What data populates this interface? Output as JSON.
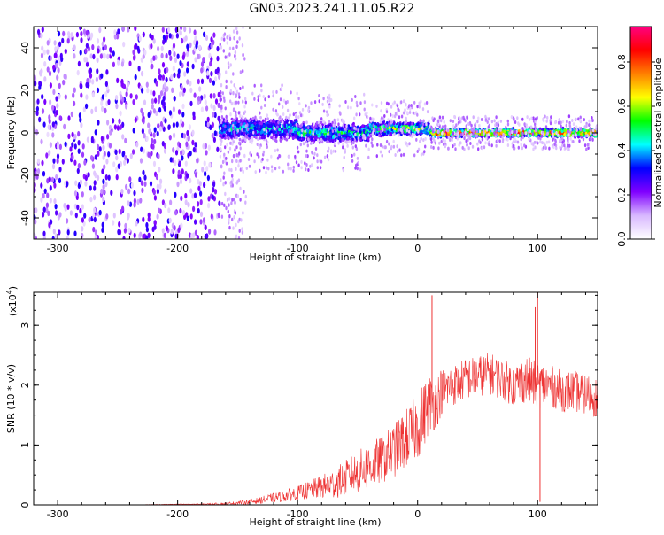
{
  "title": "GN03.2023.241.11.05.R22",
  "colorbar": {
    "label": "Normalized spectral amplitude",
    "ticks": [
      "0.0",
      "0.2",
      "0.4",
      "0.6",
      "0.8"
    ],
    "tick_values": [
      0.0,
      0.2,
      0.4,
      0.6,
      0.8
    ],
    "range": [
      0,
      0.96
    ],
    "colors": [
      "#ffffff",
      "#d8b8ff",
      "#8000ff",
      "#0000ff",
      "#00ffff",
      "#00ff00",
      "#ffff00",
      "#ff8000",
      "#ff0000",
      "#ff0080"
    ]
  },
  "chart_data": [
    {
      "type": "heatmap",
      "xlabel": "Height of straight line (km)",
      "ylabel": "Frequency (Hz)",
      "xlim": [
        -320,
        150
      ],
      "ylim": [
        -50,
        50
      ],
      "xticks": [
        -300,
        -200,
        -100,
        0,
        100
      ],
      "xtick_labels": [
        "-300",
        "-200",
        "-100",
        "0",
        "100"
      ],
      "yticks": [
        -40,
        -20,
        0,
        20,
        40
      ],
      "ytick_labels": [
        "-40",
        "-20",
        "0",
        "20",
        "40"
      ],
      "regions": [
        {
          "x": [
            -320,
            -165
          ],
          "freq_range": [
            -50,
            50
          ],
          "amplitude": 0.25,
          "description_type": "broadband noise"
        },
        {
          "x": [
            -165,
            -100
          ],
          "freq_center": 2,
          "freq_halfwidth": 8,
          "amplitude": 0.45
        },
        {
          "x": [
            -100,
            -40
          ],
          "freq_center": 0,
          "freq_halfwidth": 7,
          "amplitude": 0.5
        },
        {
          "x": [
            -40,
            10
          ],
          "freq_center": 2,
          "freq_halfwidth": 5,
          "amplitude": 0.6
        },
        {
          "x": [
            10,
            150
          ],
          "freq_center": 0,
          "freq_halfwidth": 3,
          "amplitude": 0.85
        }
      ]
    },
    {
      "type": "line",
      "xlabel": "Height of straight line (km)",
      "ylabel": "SNR (10 * v/v)",
      "scale_label": "(x10",
      "scale_exponent": "4",
      "scale_suffix": ")",
      "xlim": [
        -320,
        150
      ],
      "ylim": [
        0,
        3.55
      ],
      "xticks": [
        -300,
        -200,
        -100,
        0,
        100
      ],
      "xtick_labels": [
        "-300",
        "-200",
        "-100",
        "0",
        "100"
      ],
      "yticks": [
        0,
        1,
        2,
        3
      ],
      "ytick_labels": [
        "0",
        "1",
        "2",
        "3"
      ],
      "color": "#ee3333",
      "series": [
        {
          "x": [
            -320,
            -280,
            -240,
            -200,
            -180,
            -160,
            -140,
            -130,
            -120,
            -110,
            -100,
            -90,
            -80,
            -70,
            -60,
            -50,
            -40,
            -30,
            -20,
            -10,
            0,
            5,
            10,
            15,
            20,
            30,
            40,
            50,
            60,
            70,
            80,
            90,
            100,
            110,
            120,
            130,
            140,
            150
          ],
          "y": [
            0.0,
            0.0,
            0.0,
            0.01,
            0.01,
            0.02,
            0.05,
            0.08,
            0.12,
            0.15,
            0.2,
            0.25,
            0.3,
            0.35,
            0.45,
            0.55,
            0.65,
            0.75,
            0.9,
            1.1,
            1.3,
            1.5,
            1.7,
            1.7,
            1.9,
            2.0,
            2.1,
            2.15,
            2.2,
            2.1,
            2.0,
            2.1,
            2.0,
            2.0,
            1.9,
            1.9,
            1.85,
            1.8
          ],
          "spread": [
            0,
            0,
            0,
            0.005,
            0.01,
            0.02,
            0.04,
            0.06,
            0.08,
            0.1,
            0.12,
            0.15,
            0.2,
            0.25,
            0.3,
            0.35,
            0.4,
            0.4,
            0.45,
            0.5,
            0.55,
            0.55,
            0.5,
            0.45,
            0.4,
            0.35,
            0.35,
            0.35,
            0.35,
            0.35,
            0.35,
            0.4,
            0.4,
            0.35,
            0.35,
            0.35,
            0.35,
            0.35
          ]
        }
      ],
      "peaks": [
        {
          "x": 12,
          "y": 3.5
        },
        {
          "x": 98,
          "y": 3.3
        },
        {
          "x": 100,
          "y": 3.55
        },
        {
          "x": 102,
          "y": 0.05
        }
      ]
    }
  ]
}
